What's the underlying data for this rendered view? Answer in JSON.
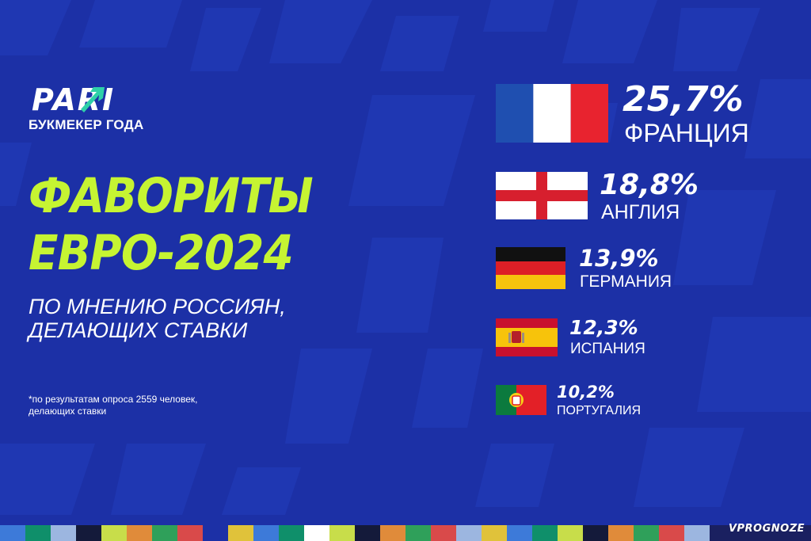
{
  "brand": {
    "logo_text": "PARI",
    "tagline": "БУКМЕКЕР ГОДА"
  },
  "headline": {
    "line1": "ФАВОРИТЫ",
    "line2": "ЕВРО-2024"
  },
  "subheadline": {
    "line1": "ПО МНЕНИЮ РОССИЯН,",
    "line2": "ДЕЛАЮЩИХ СТАВКИ"
  },
  "footnote": {
    "line1": "*по результатам опроса 2559 человек,",
    "line2": "делающих ставки"
  },
  "watermark": "VPROGNOZE",
  "colors": {
    "background": "#1c30a6",
    "accent": "#c6f432",
    "text": "#ffffff"
  },
  "chart_data": {
    "type": "bar",
    "unit": "%",
    "categories": [
      "ФРАНЦИЯ",
      "АНГЛИЯ",
      "ГЕРМАНИЯ",
      "ИСПАНИЯ",
      "ПОРТУГАЛИЯ"
    ],
    "values": [
      25.7,
      18.8,
      13.9,
      12.3,
      10.2
    ],
    "labels": [
      "25,7%",
      "18,8%",
      "13,9%",
      "12,3%",
      "10,2%"
    ],
    "flags": [
      "flag-france-icon",
      "flag-england-icon",
      "flag-germany-icon",
      "flag-spain-icon",
      "flag-portugal-icon"
    ]
  }
}
